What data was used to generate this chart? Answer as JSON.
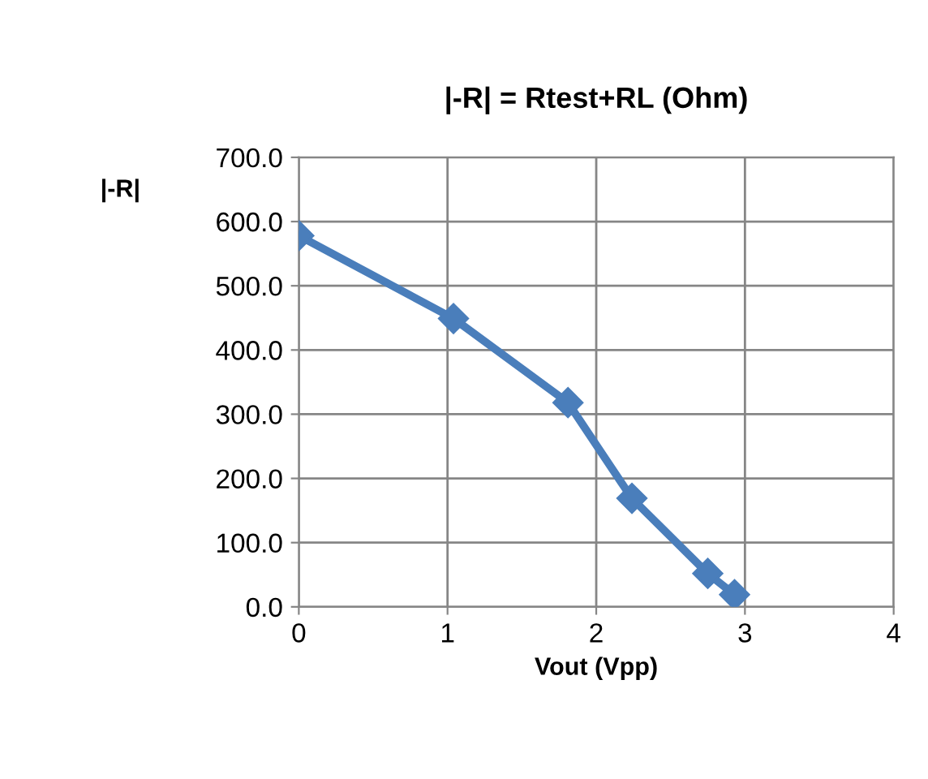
{
  "chart_data": {
    "type": "line",
    "title": "|-R| = Rtest+RL (Ohm)",
    "xlabel": "Vout (Vpp)",
    "ylabel": "|-R|",
    "x": [
      0,
      1.04,
      1.81,
      2.24,
      2.75,
      2.93
    ],
    "series": [
      {
        "color": "#4a7ebb",
        "values": [
          578,
          449,
          318,
          169,
          52,
          19
        ]
      }
    ],
    "xlim": [
      0,
      4
    ],
    "xticks": [
      0,
      1,
      2,
      3,
      4
    ],
    "ylim": [
      0,
      700
    ],
    "yticks": [
      {
        "value": 0,
        "label": "0.0"
      },
      {
        "value": 100,
        "label": "100.0"
      },
      {
        "value": 200,
        "label": "200.0"
      },
      {
        "value": 300,
        "label": "300.0"
      },
      {
        "value": 400,
        "label": "400.0"
      },
      {
        "value": 500,
        "label": "500.0"
      },
      {
        "value": 600,
        "label": "600.0"
      },
      {
        "value": 700,
        "label": "700.0"
      }
    ],
    "grid": true,
    "marker": "diamond",
    "line_style": "solid",
    "legend": false
  }
}
